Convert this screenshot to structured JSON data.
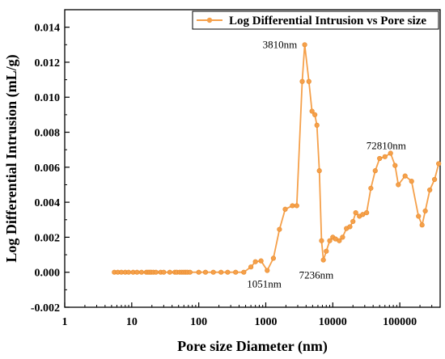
{
  "chart_data": {
    "type": "line",
    "xlabel": "Pore size Diameter (nm)",
    "ylabel": "Log Differential Intrusion (mL/g)",
    "xscale": "log",
    "xlim": [
      1,
      400000
    ],
    "ylim": [
      -0.002,
      0.015
    ],
    "x_ticks": [
      1,
      10,
      100,
      1000,
      10000,
      100000
    ],
    "x_tick_labels": [
      "1",
      "10",
      "100",
      "1000",
      "10000",
      "100000"
    ],
    "y_ticks": [
      -0.002,
      0,
      0.002,
      0.004,
      0.006,
      0.008,
      0.01,
      0.012,
      0.014
    ],
    "y_tick_labels": [
      "-0.002",
      "0.000",
      "0.002",
      "0.004",
      "0.006",
      "0.008",
      "0.010",
      "0.012",
      "0.014"
    ],
    "grid": false,
    "legend_position": "top-right",
    "series": [
      {
        "name": "Log Differential Intrusion vs Pore size",
        "color": "#f5a04a",
        "marker": "circle",
        "points": [
          [
            5.5,
            0
          ],
          [
            6.2,
            0
          ],
          [
            7.0,
            0
          ],
          [
            8.0,
            0
          ],
          [
            9.0,
            0
          ],
          [
            10.5,
            0
          ],
          [
            12,
            0
          ],
          [
            14,
            0
          ],
          [
            16.5,
            0
          ],
          [
            17.5,
            0
          ],
          [
            18.5,
            0
          ],
          [
            19.5,
            0
          ],
          [
            21,
            0
          ],
          [
            23,
            0
          ],
          [
            27,
            0
          ],
          [
            30,
            0
          ],
          [
            37,
            0
          ],
          [
            44,
            0
          ],
          [
            47,
            0
          ],
          [
            52,
            0
          ],
          [
            56,
            0
          ],
          [
            60,
            0
          ],
          [
            64,
            0
          ],
          [
            68,
            0
          ],
          [
            74,
            0
          ],
          [
            100,
            0
          ],
          [
            126,
            0
          ],
          [
            165,
            0
          ],
          [
            215,
            0
          ],
          [
            270,
            0
          ],
          [
            355,
            0
          ],
          [
            470,
            0
          ],
          [
            600,
            0.0003
          ],
          [
            700,
            0.0006
          ],
          [
            850,
            0.00065
          ],
          [
            1051,
            0.0001
          ],
          [
            1300,
            0.0008
          ],
          [
            1600,
            0.00245
          ],
          [
            1950,
            0.0036
          ],
          [
            2500,
            0.0038
          ],
          [
            2900,
            0.0038
          ],
          [
            3500,
            0.0109
          ],
          [
            3810,
            0.013
          ],
          [
            4400,
            0.0109
          ],
          [
            4900,
            0.0092
          ],
          [
            5400,
            0.009
          ],
          [
            5800,
            0.0084
          ],
          [
            6300,
            0.0058
          ],
          [
            6800,
            0.0018
          ],
          [
            7236,
            0.0007
          ],
          [
            8000,
            0.0012
          ],
          [
            9000,
            0.0018
          ],
          [
            10000,
            0.002
          ],
          [
            11000,
            0.0019
          ],
          [
            12500,
            0.0018
          ],
          [
            14000,
            0.002
          ],
          [
            16000,
            0.0025
          ],
          [
            18000,
            0.0026
          ],
          [
            20000,
            0.0029
          ],
          [
            22000,
            0.0034
          ],
          [
            25000,
            0.0032
          ],
          [
            28000,
            0.0033
          ],
          [
            32000,
            0.0034
          ],
          [
            37000,
            0.0048
          ],
          [
            43000,
            0.0058
          ],
          [
            50000,
            0.0065
          ],
          [
            60000,
            0.0066
          ],
          [
            72810,
            0.0068
          ],
          [
            85000,
            0.0061
          ],
          [
            95000,
            0.005
          ],
          [
            120000,
            0.0055
          ],
          [
            150000,
            0.0052
          ],
          [
            190000,
            0.0032
          ],
          [
            215000,
            0.0027
          ],
          [
            240000,
            0.0035
          ],
          [
            280000,
            0.0047
          ],
          [
            330000,
            0.0053
          ],
          [
            380000,
            0.0062
          ]
        ]
      }
    ],
    "annotations": [
      {
        "text": "3810nm",
        "x": 3810,
        "y": 0.013
      },
      {
        "text": "1051nm",
        "x": 1051,
        "y": 0.0001
      },
      {
        "text": "7236nm",
        "x": 7236,
        "y": 0.0007
      },
      {
        "text": "72810nm",
        "x": 72810,
        "y": 0.0068
      }
    ]
  }
}
